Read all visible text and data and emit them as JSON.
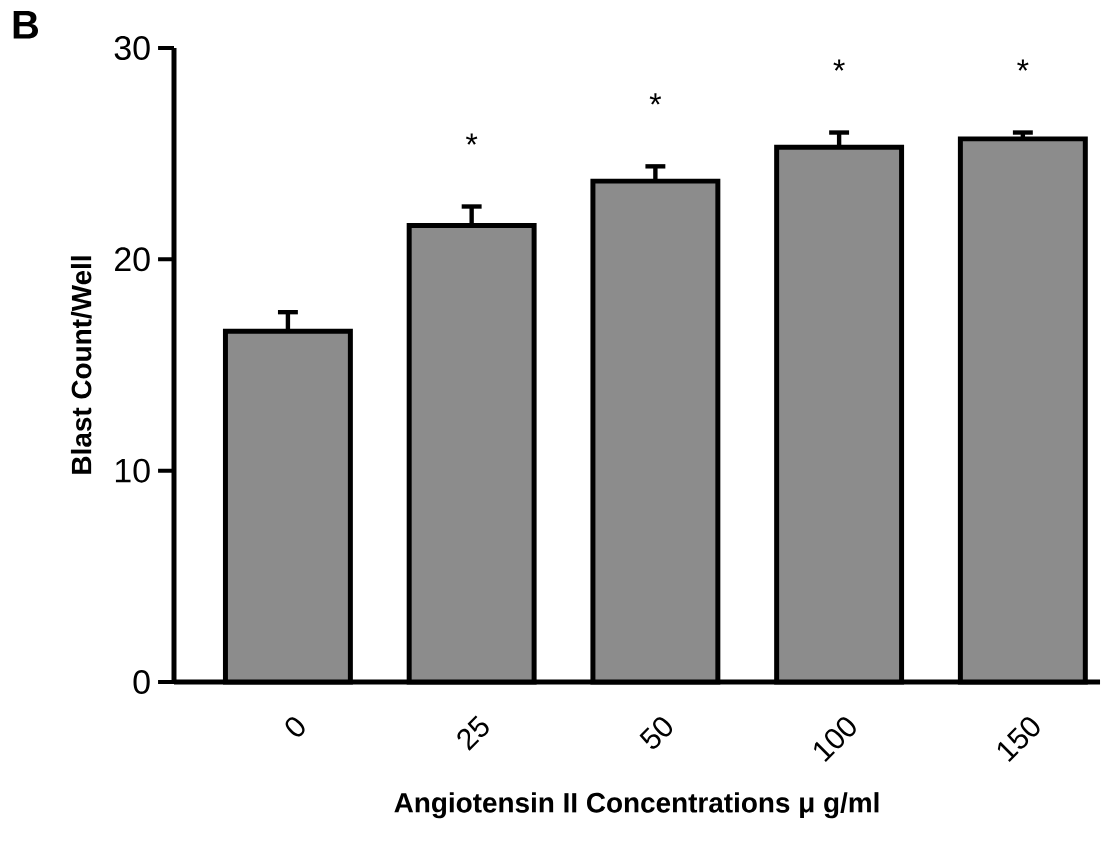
{
  "chart_data": {
    "type": "bar",
    "xlabel": "Angiotensin II Concentrations μ g/ml",
    "ylabel": "Blast Count/Well",
    "categories": [
      "0",
      "25",
      "50",
      "100",
      "150"
    ],
    "values": [
      16.6,
      21.6,
      23.7,
      25.3,
      25.7
    ],
    "errors": [
      0.9,
      0.9,
      0.7,
      0.7,
      0.3
    ],
    "color": "#8c8c8c",
    "ylim": [
      0,
      30
    ],
    "yticks": [
      0,
      10,
      20,
      30
    ],
    "annotations": [
      "B",
      "*",
      "*",
      "*",
      "*"
    ]
  }
}
